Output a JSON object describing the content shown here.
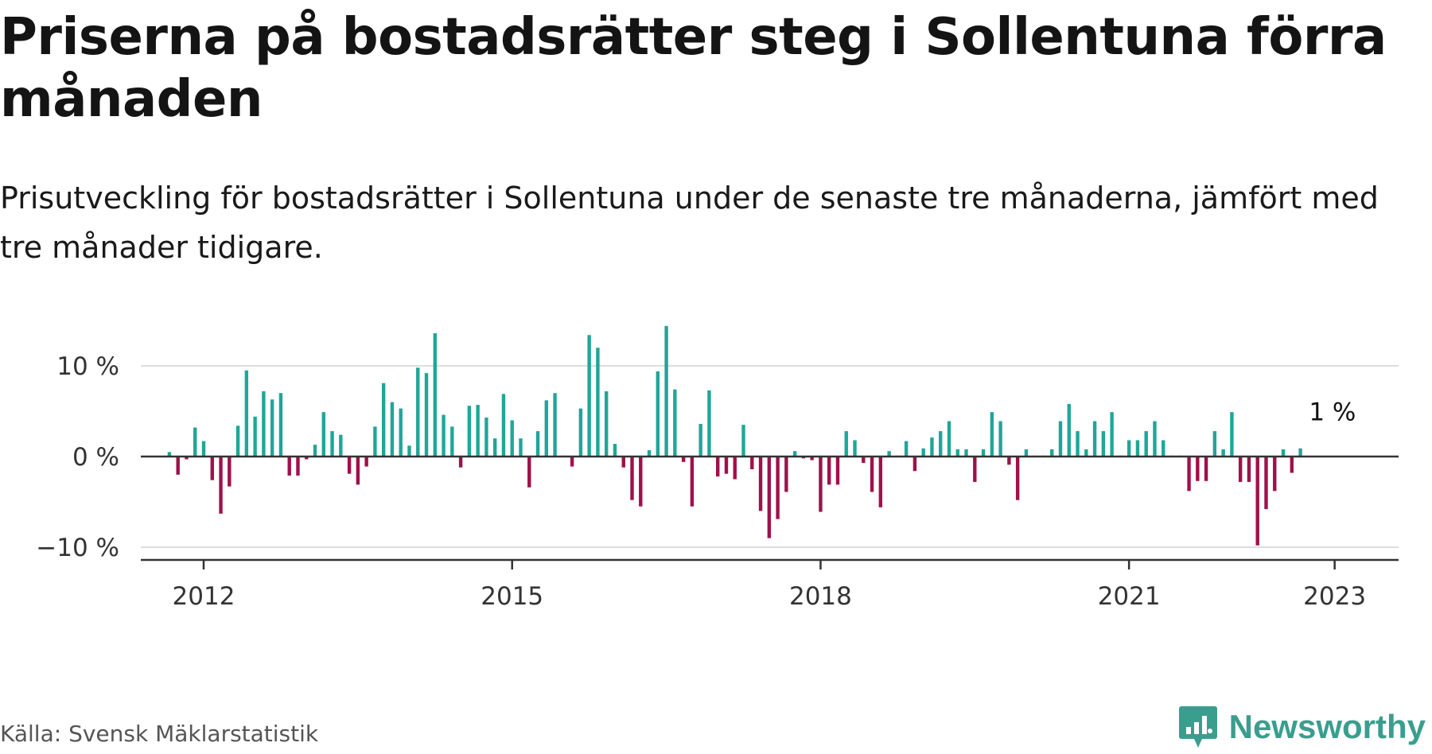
{
  "header": {
    "title": "Priserna på bostadsrätter steg i Sollentuna förra månaden",
    "subtitle": "Prisutveckling för bostadsrätter i Sollentuna under de senaste tre månaderna, jämfört med tre månader tidigare."
  },
  "footer": {
    "source": "Källa: Svensk Mäklarstatistik",
    "brand": "Newsworthy",
    "brand_icon": "bar-chart-speech-bubble-icon"
  },
  "colors": {
    "positive": "#1fa698",
    "negative": "#a0104a",
    "grid": "#dddddd",
    "axis": "#333333",
    "brand": "#3a9e8e"
  },
  "chart_data": {
    "type": "bar",
    "title": "Priserna på bostadsrätter steg i Sollentuna förra månaden",
    "xlabel": "",
    "ylabel": "",
    "ylim": [
      -11.5,
      15
    ],
    "grid": true,
    "y_ticks": [
      {
        "value": 10,
        "label": "10 %"
      },
      {
        "value": 0,
        "label": "0 %"
      },
      {
        "value": -10,
        "label": "−10 %"
      }
    ],
    "x_ticks": [
      {
        "value": "2012-01",
        "label": "2012"
      },
      {
        "value": "2015-01",
        "label": "2015"
      },
      {
        "value": "2018-01",
        "label": "2018"
      },
      {
        "value": "2021-01",
        "label": "2021"
      },
      {
        "value": "2023-01",
        "label": "2023"
      }
    ],
    "start": "2011-09",
    "values": [
      0.5,
      -2,
      -0.3,
      3.2,
      1.7,
      -2.6,
      -6.3,
      -3.3,
      3.4,
      9.5,
      4.4,
      7.2,
      6.3,
      7.0,
      -2.1,
      -2.1,
      -0.3,
      1.3,
      4.9,
      2.8,
      2.4,
      -1.9,
      -3.1,
      -1.1,
      3.3,
      8.1,
      6.0,
      5.3,
      1.2,
      9.8,
      9.2,
      13.6,
      4.6,
      3.3,
      -1.2,
      5.6,
      5.7,
      4.3,
      2.0,
      6.9,
      4.0,
      2.0,
      -3.4,
      2.8,
      6.2,
      7.0,
      0.1,
      -1.1,
      5.3,
      13.4,
      12.0,
      7.2,
      1.4,
      -1.2,
      -4.8,
      -5.5,
      0.7,
      9.4,
      14.4,
      7.4,
      -0.6,
      -5.5,
      3.6,
      7.3,
      -2.2,
      -1.9,
      -2.5,
      3.5,
      -1.4,
      -6.0,
      -9.0,
      -6.9,
      -3.9,
      0.6,
      -0.2,
      -0.4,
      -6.1,
      -3.1,
      -3.1,
      2.8,
      1.8,
      -0.7,
      -3.9,
      -5.6,
      0.6,
      0.1,
      1.7,
      -1.6,
      0.9,
      2.1,
      2.8,
      3.9,
      0.8,
      0.8,
      -2.8,
      0.8,
      4.9,
      3.9,
      -0.9,
      -4.8,
      0.8,
      0.1,
      0.1,
      0.8,
      3.9,
      5.8,
      2.8,
      0.8,
      3.9,
      2.8,
      4.9,
      0.1,
      1.8,
      1.8,
      2.8,
      3.9,
      1.8,
      0.1,
      0.1,
      -3.8,
      -2.7,
      -2.7,
      2.8,
      0.8,
      4.9,
      -2.8,
      -2.8,
      -9.8,
      -5.8,
      -3.8,
      0.8,
      -1.8,
      0.9
    ],
    "annotations": [
      {
        "label": "1 %",
        "x": "2022-12",
        "y": 0.9
      }
    ]
  }
}
